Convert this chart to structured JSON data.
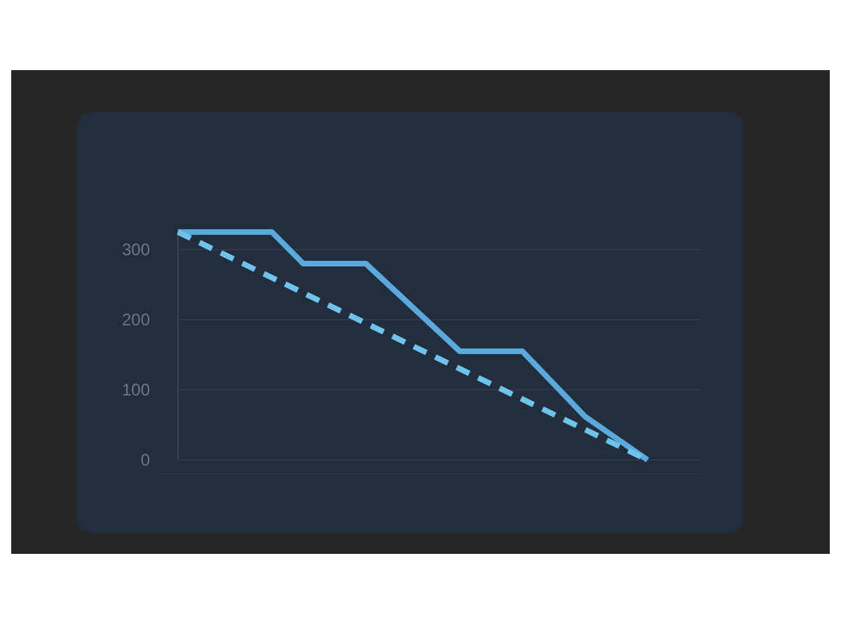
{
  "chart_data": {
    "type": "line",
    "categories": [
      null,
      null,
      null,
      null,
      null,
      null,
      null,
      null,
      null,
      null,
      null,
      null,
      null,
      null,
      null,
      null
    ],
    "ylim": [
      0,
      330
    ],
    "yticks": [
      0,
      100,
      200,
      300
    ],
    "grid": "y",
    "tick_labels": "y",
    "marker": "none",
    "series": [
      {
        "color": "#5aa9dc",
        "line_style": "solid",
        "values": [
          325,
          null,
          null,
          325,
          280,
          null,
          280,
          null,
          null,
          155,
          null,
          155,
          null,
          62,
          null,
          0
        ]
      },
      {
        "color": "#6ec3ea",
        "line_style": "dashed",
        "values": [
          325,
          null,
          null,
          null,
          null,
          null,
          null,
          null,
          null,
          null,
          null,
          null,
          null,
          null,
          null,
          0
        ]
      }
    ]
  }
}
